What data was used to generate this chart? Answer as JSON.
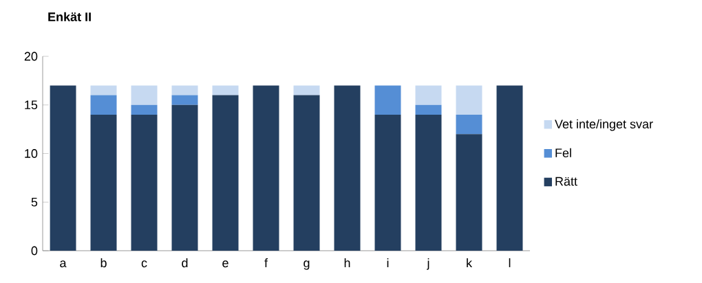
{
  "chart_data": {
    "type": "bar",
    "title": "Enkät II",
    "stacked": true,
    "categories": [
      "a",
      "b",
      "c",
      "d",
      "e",
      "f",
      "g",
      "h",
      "i",
      "j",
      "k",
      "l"
    ],
    "series": [
      {
        "name": "Rätt",
        "color": "#243f60",
        "values": [
          17,
          14,
          14,
          15,
          16,
          17,
          16,
          17,
          14,
          14,
          12,
          17
        ]
      },
      {
        "name": "Fel",
        "color": "#558ed5",
        "values": [
          0,
          2,
          1,
          1,
          0,
          0,
          0,
          0,
          3,
          1,
          2,
          0
        ]
      },
      {
        "name": "Vet inte/inget svar",
        "color": "#c6d9f1",
        "values": [
          0,
          1,
          2,
          1,
          1,
          0,
          1,
          0,
          0,
          2,
          3,
          0
        ]
      }
    ],
    "ylim": [
      0,
      20
    ],
    "yticks": [
      0,
      5,
      10,
      15,
      20
    ],
    "legend": "right"
  }
}
